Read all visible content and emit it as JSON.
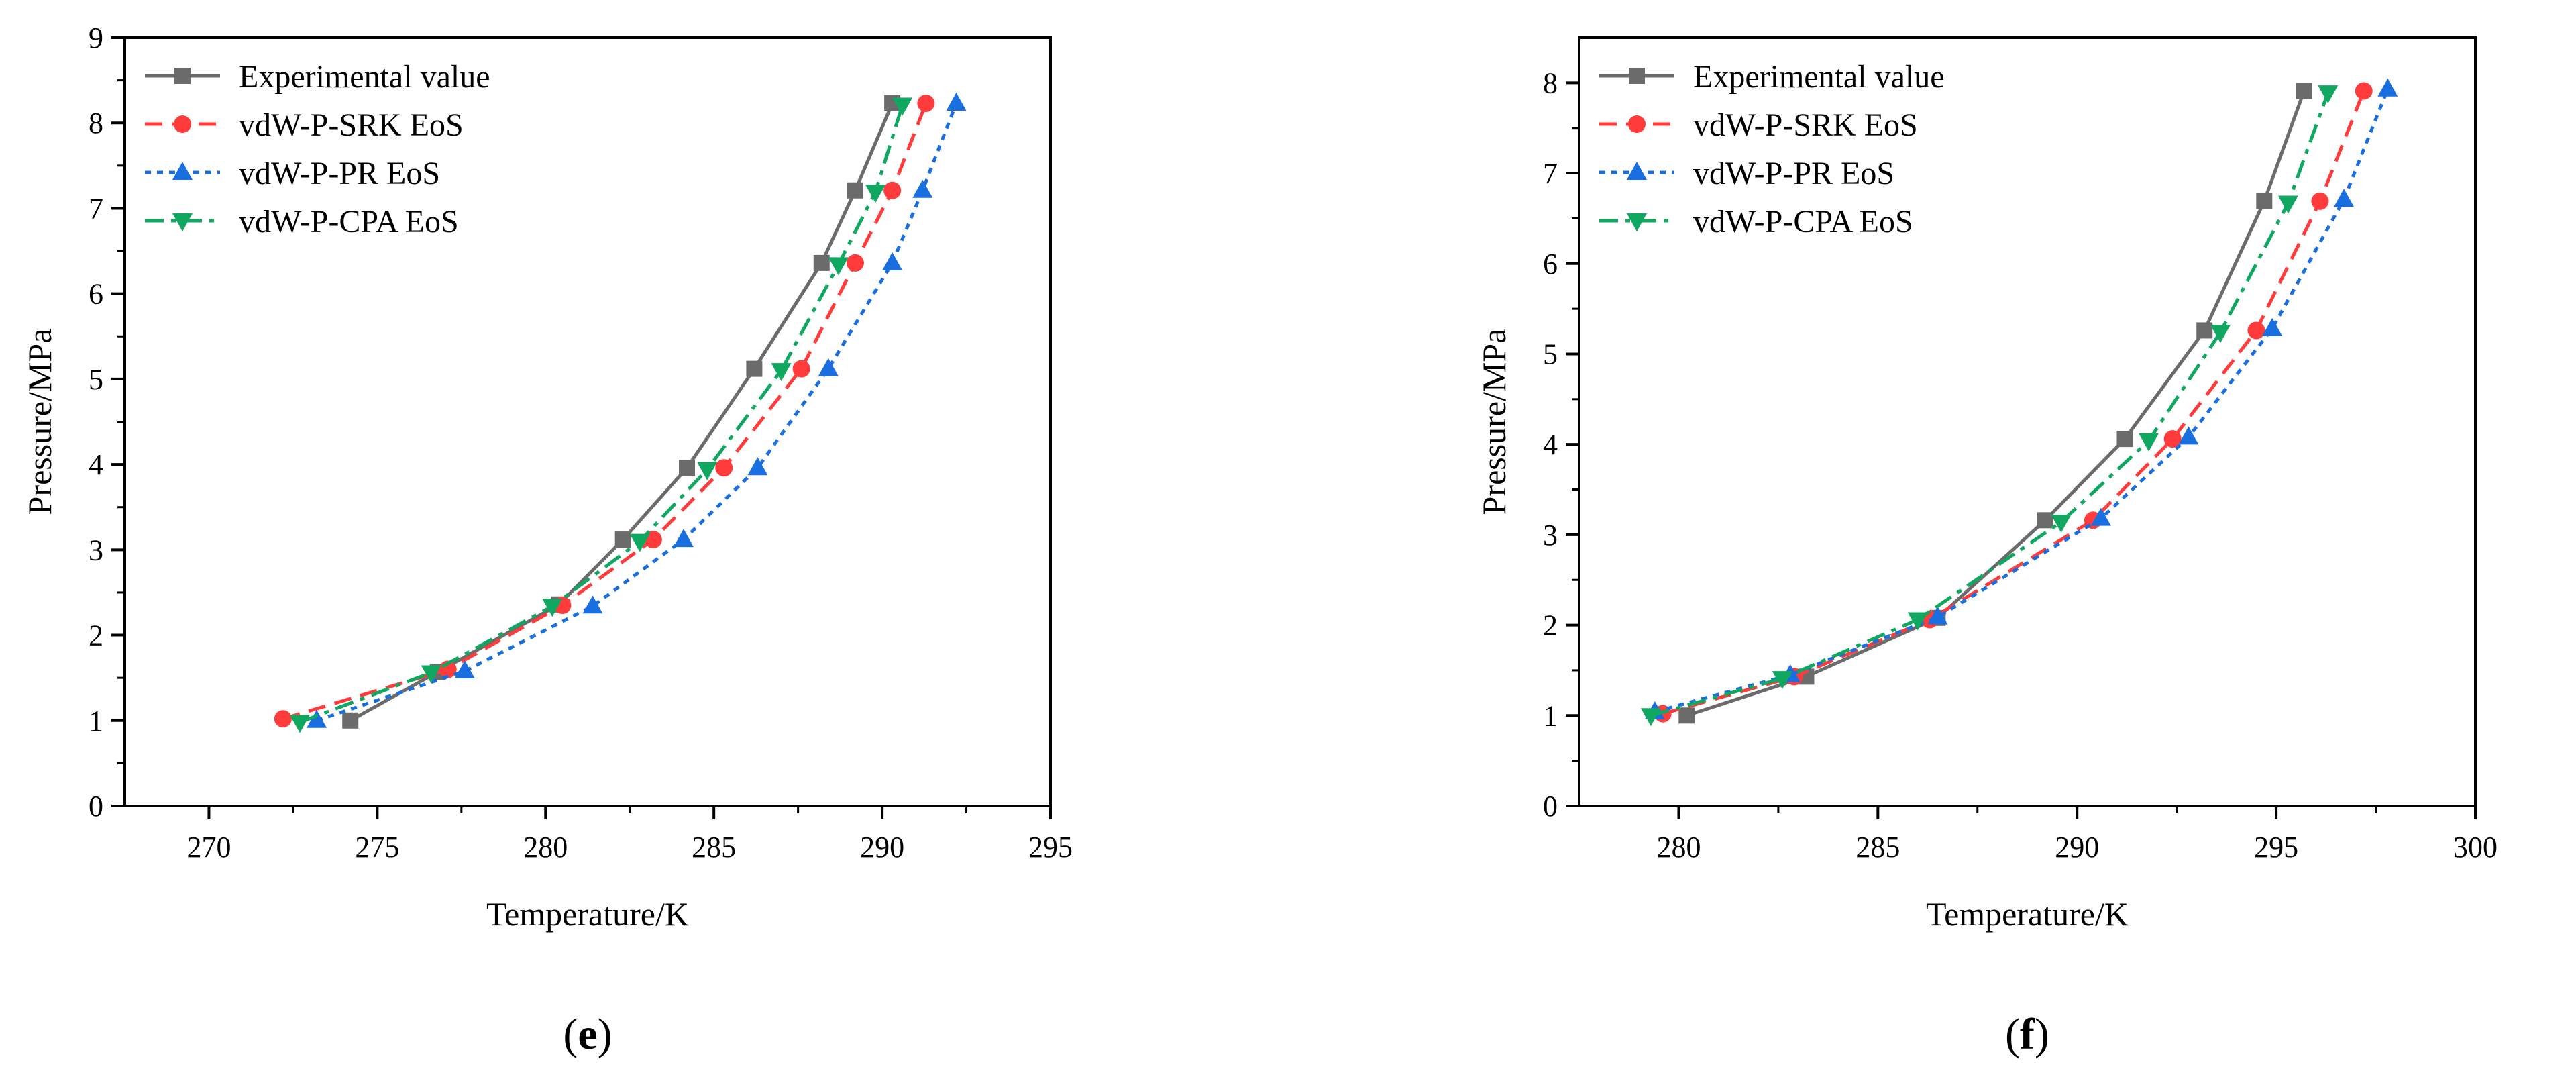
{
  "chart_data": [
    {
      "type": "line",
      "panel_label": {
        "pre": "(",
        "letter": "e",
        "post": ")"
      },
      "xlabel": "Temperature/K",
      "ylabel": "Pressure/MPa",
      "xlim": [
        267.5,
        295
      ],
      "ylim": [
        0,
        9
      ],
      "xticks": [
        270,
        275,
        280,
        285,
        290,
        295
      ],
      "yticks": [
        0,
        1,
        2,
        3,
        4,
        5,
        6,
        7,
        8,
        9
      ],
      "grid": false,
      "legend_position": "top-left",
      "series": [
        {
          "name": "Experimental value",
          "color": "#6b6b6b",
          "dash": "solid",
          "marker": "square",
          "x": [
            274.2,
            276.8,
            280.4,
            282.3,
            284.2,
            286.2,
            288.2,
            289.2,
            290.3
          ],
          "y": [
            1.0,
            1.57,
            2.36,
            3.12,
            3.96,
            5.12,
            6.36,
            7.21,
            8.23
          ]
        },
        {
          "name": "vdW-P-SRK EoS",
          "color": "#ff3b3b",
          "dash": "dash",
          "marker": "circle",
          "x": [
            272.2,
            277.1,
            280.5,
            283.2,
            285.3,
            287.6,
            289.2,
            290.3,
            291.3
          ],
          "y": [
            1.02,
            1.6,
            2.35,
            3.12,
            3.96,
            5.12,
            6.36,
            7.21,
            8.23
          ]
        },
        {
          "name": "vdW-P-PR EoS",
          "color": "#1a6fe0",
          "dash": "dot",
          "marker": "triangle-up",
          "x": [
            273.2,
            277.6,
            281.4,
            284.1,
            286.3,
            288.4,
            290.3,
            291.2,
            292.2
          ],
          "y": [
            1.0,
            1.58,
            2.34,
            3.12,
            3.96,
            5.12,
            6.36,
            7.21,
            8.23
          ]
        },
        {
          "name": "vdW-P-CPA EoS",
          "color": "#10a860",
          "dash": "dashdot",
          "marker": "triangle-down",
          "x": [
            272.7,
            276.6,
            280.2,
            282.8,
            284.8,
            287.0,
            288.7,
            289.8,
            290.6
          ],
          "y": [
            0.98,
            1.56,
            2.34,
            3.1,
            3.94,
            5.1,
            6.34,
            7.19,
            8.21
          ]
        }
      ]
    },
    {
      "type": "line",
      "panel_label": {
        "pre": "(",
        "letter": "f",
        "post": ")"
      },
      "xlabel": "Temperature/K",
      "ylabel": "Pressure/MPa",
      "xlim": [
        277.5,
        300
      ],
      "ylim": [
        0,
        8.5
      ],
      "xticks": [
        280,
        285,
        290,
        295,
        300
      ],
      "yticks": [
        0,
        1,
        2,
        3,
        4,
        5,
        6,
        7,
        8
      ],
      "grid": false,
      "legend_position": "top-left",
      "series": [
        {
          "name": "Experimental value",
          "color": "#6b6b6b",
          "dash": "solid",
          "marker": "square",
          "x": [
            280.2,
            283.2,
            286.5,
            289.2,
            291.2,
            293.2,
            294.7,
            295.7
          ],
          "y": [
            1.0,
            1.43,
            2.08,
            3.16,
            4.06,
            5.26,
            6.69,
            7.91
          ]
        },
        {
          "name": "vdW-P-SRK EoS",
          "color": "#ff3b3b",
          "dash": "dash",
          "marker": "circle",
          "x": [
            279.6,
            282.9,
            286.3,
            290.4,
            292.4,
            294.5,
            296.1,
            297.2
          ],
          "y": [
            1.02,
            1.43,
            2.06,
            3.16,
            4.06,
            5.26,
            6.69,
            7.91
          ]
        },
        {
          "name": "vdW-P-PR EoS",
          "color": "#1a6fe0",
          "dash": "dot",
          "marker": "triangle-up",
          "x": [
            279.4,
            282.8,
            286.5,
            290.6,
            292.8,
            294.9,
            296.7,
            297.8
          ],
          "y": [
            1.04,
            1.45,
            2.09,
            3.18,
            4.08,
            5.28,
            6.71,
            7.93
          ]
        },
        {
          "name": "vdW-P-CPA EoS",
          "color": "#10a860",
          "dash": "dashdot",
          "marker": "triangle-down",
          "x": [
            279.3,
            282.6,
            286.0,
            289.6,
            291.8,
            293.6,
            295.3,
            296.3
          ],
          "y": [
            1.0,
            1.41,
            2.06,
            3.14,
            4.04,
            5.24,
            6.67,
            7.89
          ]
        }
      ]
    }
  ]
}
